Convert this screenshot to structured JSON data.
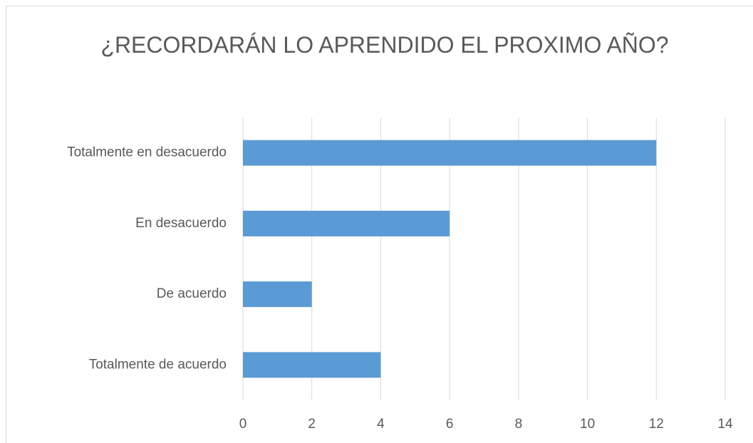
{
  "chart_data": {
    "type": "bar",
    "orientation": "horizontal",
    "title": "¿RECORDARÁN LO APRENDIDO EL PROXIMO AÑO?",
    "categories": [
      "Totalmente en desacuerdo",
      "En desacuerdo",
      "De acuerdo",
      "Totalmente de acuerdo"
    ],
    "values": [
      12,
      6,
      2,
      4
    ],
    "color": "#5b9bd5",
    "xlim": [
      0,
      14
    ],
    "xticks": [
      0,
      2,
      4,
      6,
      8,
      10,
      12,
      14
    ],
    "grid": true
  }
}
